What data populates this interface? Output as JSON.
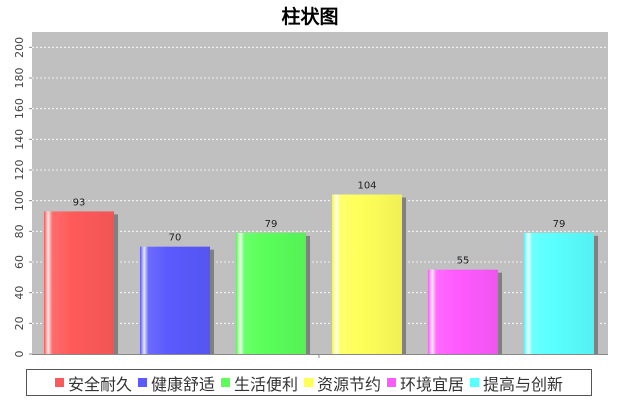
{
  "chart_data": {
    "type": "bar",
    "title": "柱状图",
    "categories": [
      "安全耐久",
      "健康舒适",
      "生活便利",
      "资源节约",
      "环境宜居",
      "提高与创新"
    ],
    "values": [
      93,
      70,
      79,
      104,
      55,
      79
    ],
    "colors": [
      "#ff5a5a",
      "#5a5aff",
      "#5aff5a",
      "#ffff5a",
      "#ff5aff",
      "#5affff"
    ],
    "ylim": [
      0,
      210
    ],
    "yticks": [
      0,
      20,
      40,
      60,
      80,
      100,
      120,
      140,
      160,
      180,
      200
    ],
    "xlabel": "",
    "ylabel": "",
    "grid": true,
    "legend_position": "bottom",
    "plot_background": "#c0c0c0"
  }
}
